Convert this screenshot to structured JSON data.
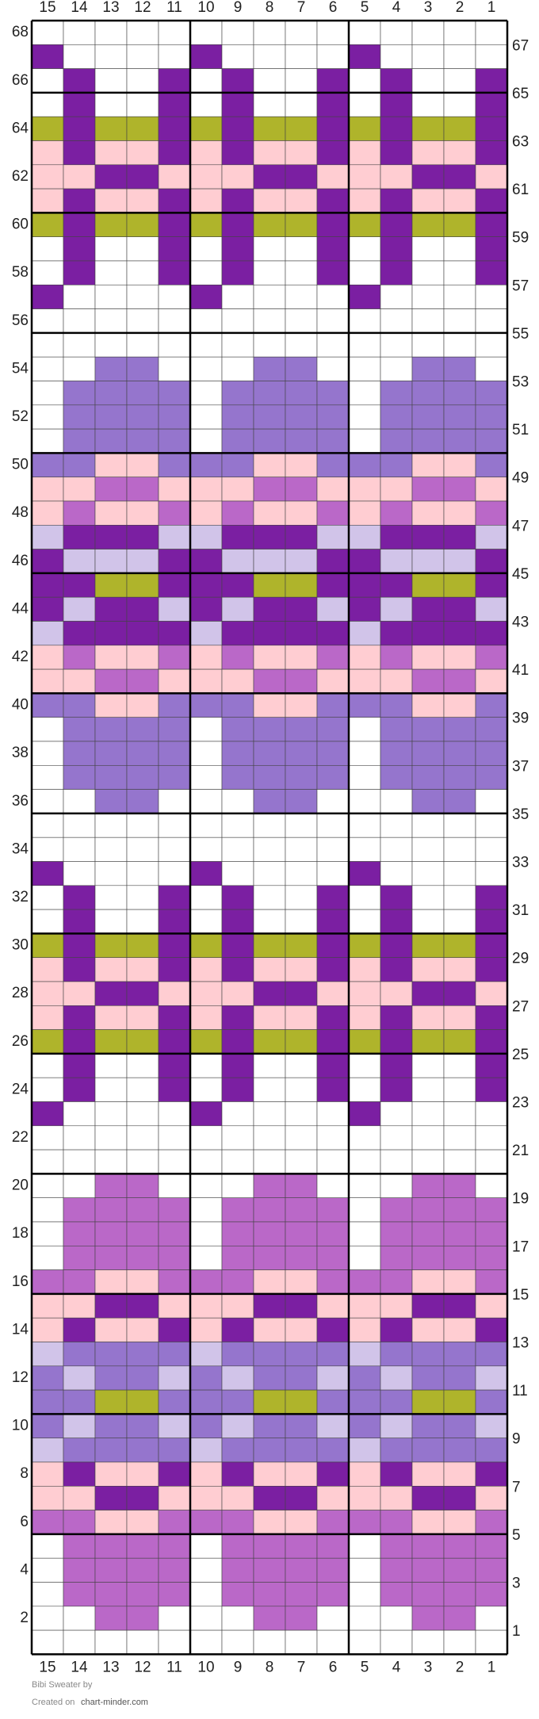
{
  "columns": [
    "15",
    "14",
    "13",
    "12",
    "11",
    "10",
    "9",
    "8",
    "7",
    "6",
    "5",
    "4",
    "3",
    "2",
    "1"
  ],
  "rows": [
    "68",
    "67",
    "66",
    "65",
    "64",
    "63",
    "62",
    "61",
    "60",
    "59",
    "58",
    "57",
    "56",
    "55",
    "54",
    "53",
    "52",
    "51",
    "50",
    "49",
    "48",
    "47",
    "46",
    "45",
    "44",
    "43",
    "42",
    "41",
    "40",
    "39",
    "38",
    "37",
    "36",
    "35",
    "34",
    "33",
    "32",
    "31",
    "30",
    "29",
    "28",
    "27",
    "26",
    "25",
    "24",
    "23",
    "22",
    "21",
    "20",
    "19",
    "18",
    "17",
    "16",
    "15",
    "14",
    "13",
    "12",
    "11",
    "10",
    "9",
    "8",
    "7",
    "6",
    "5",
    "4",
    "3",
    "2",
    "1"
  ],
  "footer": {
    "title": "Bibi Sweater by",
    "created": "Created on",
    "site": "chart-minder.com"
  }
}
